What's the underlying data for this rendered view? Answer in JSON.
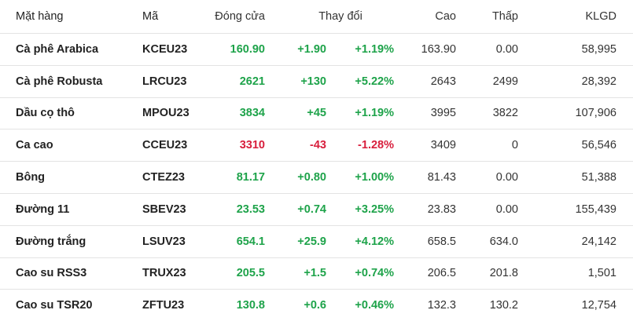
{
  "colors": {
    "up": "#1ea34a",
    "down": "#d81e3c",
    "text": "#222222",
    "border": "#e3e3e3"
  },
  "headers": {
    "name": "Mặt hàng",
    "code": "Mã",
    "close": "Đóng cửa",
    "change": "Thay đổi",
    "high": "Cao",
    "low": "Thấp",
    "volume": "KLGD"
  },
  "rows": [
    {
      "name": "Cà phê Arabica",
      "code": "KCEU23",
      "close": "160.90",
      "change": "+1.90",
      "pct": "+1.19%",
      "high": "163.90",
      "low": "0.00",
      "volume": "58,995",
      "dir": "up"
    },
    {
      "name": "Cà phê Robusta",
      "code": "LRCU23",
      "close": "2621",
      "change": "+130",
      "pct": "+5.22%",
      "high": "2643",
      "low": "2499",
      "volume": "28,392",
      "dir": "up"
    },
    {
      "name": "Dầu cọ thô",
      "code": "MPOU23",
      "close": "3834",
      "change": "+45",
      "pct": "+1.19%",
      "high": "3995",
      "low": "3822",
      "volume": "107,906",
      "dir": "up"
    },
    {
      "name": "Ca cao",
      "code": "CCEU23",
      "close": "3310",
      "change": "-43",
      "pct": "-1.28%",
      "high": "3409",
      "low": "0",
      "volume": "56,546",
      "dir": "down"
    },
    {
      "name": "Bông",
      "code": "CTEZ23",
      "close": "81.17",
      "change": "+0.80",
      "pct": "+1.00%",
      "high": "81.43",
      "low": "0.00",
      "volume": "51,388",
      "dir": "up"
    },
    {
      "name": "Đường 11",
      "code": "SBEV23",
      "close": "23.53",
      "change": "+0.74",
      "pct": "+3.25%",
      "high": "23.83",
      "low": "0.00",
      "volume": "155,439",
      "dir": "up"
    },
    {
      "name": "Đường trắng",
      "code": "LSUV23",
      "close": "654.1",
      "change": "+25.9",
      "pct": "+4.12%",
      "high": "658.5",
      "low": "634.0",
      "volume": "24,142",
      "dir": "up"
    },
    {
      "name": "Cao su RSS3",
      "code": "TRUX23",
      "close": "205.5",
      "change": "+1.5",
      "pct": "+0.74%",
      "high": "206.5",
      "low": "201.8",
      "volume": "1,501",
      "dir": "up"
    },
    {
      "name": "Cao su TSR20",
      "code": "ZFTU23",
      "close": "130.8",
      "change": "+0.6",
      "pct": "+0.46%",
      "high": "132.3",
      "low": "130.2",
      "volume": "12,754",
      "dir": "up"
    }
  ]
}
